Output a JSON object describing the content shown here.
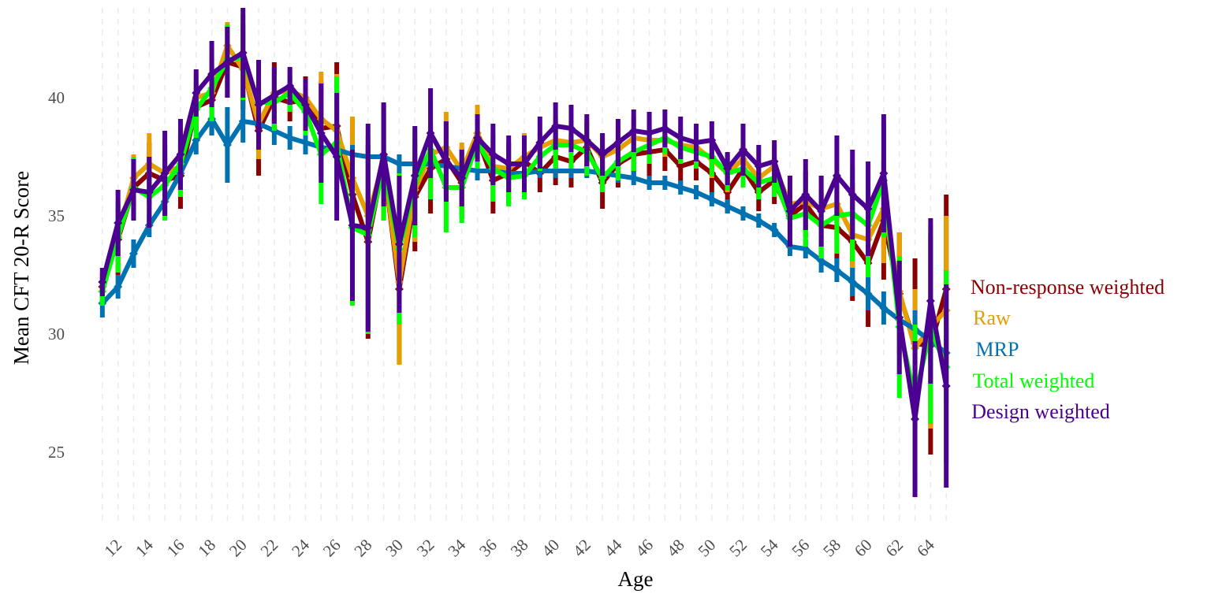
{
  "chart_data": {
    "type": "line",
    "title": "",
    "xlabel": "Age",
    "ylabel": "Mean CFT 20-R Score",
    "xlim": [
      10,
      66
    ],
    "ylim": [
      21.9,
      43.8
    ],
    "y_ticks": [
      25,
      30,
      35,
      40
    ],
    "x_ticks": [
      12,
      14,
      16,
      18,
      20,
      22,
      24,
      26,
      28,
      30,
      32,
      34,
      36,
      38,
      40,
      42,
      44,
      46,
      48,
      50,
      52,
      54,
      56,
      58,
      60,
      62,
      64
    ],
    "grid": "vertical dashed lines at every age",
    "legend": "direct labels at right end of lines",
    "x": [
      11,
      12,
      13,
      14,
      15,
      16,
      17,
      18,
      19,
      20,
      21,
      22,
      23,
      24,
      25,
      26,
      27,
      28,
      29,
      30,
      31,
      32,
      33,
      34,
      35,
      36,
      37,
      38,
      39,
      40,
      41,
      42,
      43,
      44,
      45,
      46,
      47,
      48,
      49,
      50,
      51,
      52,
      53,
      54,
      55,
      56,
      57,
      58,
      59,
      60,
      61,
      62,
      63,
      64,
      65
    ],
    "series": [
      {
        "name": "Non-response weighted",
        "color": "#8b0000",
        "values": [
          32.0,
          34.0,
          36.2,
          36.8,
          36.5,
          36.7,
          39.6,
          39.9,
          41.5,
          41.3,
          38.6,
          40.0,
          39.8,
          39.9,
          38.7,
          38.8,
          35.9,
          33.9,
          37.3,
          31.9,
          35.8,
          37.0,
          37.4,
          36.4,
          38.3,
          36.5,
          36.8,
          37.3,
          36.8,
          37.5,
          37.3,
          37.9,
          36.4,
          37.2,
          37.6,
          37.7,
          37.8,
          37.1,
          37.3,
          36.8,
          36.0,
          37.0,
          36.0,
          36.5,
          35.0,
          35.5,
          34.6,
          34.5,
          33.9,
          33.0,
          34.8,
          31.7,
          29.6,
          29.5,
          31.9
        ],
        "err": [
          0.6,
          1.5,
          1.3,
          1.3,
          1.5,
          1.4,
          1.0,
          1.5,
          1.5,
          1.8,
          1.9,
          1.5,
          0.8,
          1.0,
          2.0,
          2.7,
          3.2,
          4.1,
          2.4,
          3.2,
          2.3,
          1.9,
          1.6,
          1.5,
          1.0,
          1.4,
          1.3,
          1.1,
          0.8,
          1.2,
          1.1,
          1.0,
          1.1,
          1.0,
          1.0,
          1.0,
          0.9,
          0.8,
          0.8,
          0.8,
          0.9,
          0.8,
          0.8,
          1.0,
          1.0,
          1.4,
          1.5,
          1.6,
          2.5,
          2.7,
          2.5,
          2.6,
          3.6,
          4.6,
          4.0
        ]
      },
      {
        "name": "Raw",
        "color": "#e69f00",
        "values": [
          32.2,
          34.2,
          36.6,
          37.2,
          36.8,
          37.1,
          40.0,
          40.2,
          42.2,
          41.2,
          38.9,
          40.2,
          40.3,
          40.0,
          39.1,
          38.6,
          36.6,
          35.0,
          37.3,
          32.2,
          36.1,
          37.6,
          37.9,
          36.9,
          38.5,
          37.1,
          37.0,
          37.5,
          37.9,
          38.2,
          38.1,
          38.2,
          37.5,
          37.8,
          38.3,
          38.2,
          38.2,
          38.0,
          37.9,
          37.4,
          36.8,
          37.4,
          36.6,
          37.1,
          35.5,
          35.6,
          35.3,
          35.5,
          34.2,
          34.0,
          35.3,
          31.8,
          29.4,
          30.3,
          31.0
        ],
        "err": [
          0.4,
          1.3,
          1.0,
          1.3,
          1.4,
          1.3,
          1.0,
          1.4,
          1.0,
          1.6,
          1.5,
          0.8,
          0.9,
          0.8,
          2.0,
          2.4,
          2.6,
          2.5,
          2.5,
          3.5,
          2.2,
          1.6,
          1.5,
          1.2,
          1.2,
          1.2,
          1.1,
          1.0,
          0.6,
          1.0,
          0.9,
          0.9,
          0.9,
          0.9,
          0.9,
          0.8,
          0.7,
          0.7,
          0.7,
          0.8,
          0.8,
          0.7,
          0.7,
          0.9,
          1.2,
          1.3,
          1.4,
          1.5,
          2.1,
          2.3,
          2.3,
          2.5,
          2.5,
          4.3,
          4.0
        ]
      },
      {
        "name": "MRP",
        "color": "#0072b2",
        "values": [
          31.3,
          32.0,
          33.4,
          34.6,
          35.6,
          36.8,
          38.2,
          39.1,
          38.0,
          39.0,
          38.9,
          38.6,
          38.3,
          38.1,
          37.9,
          37.8,
          37.6,
          37.5,
          37.5,
          37.2,
          37.2,
          37.2,
          37.1,
          37.0,
          36.9,
          36.9,
          36.8,
          36.8,
          36.9,
          36.9,
          36.9,
          36.9,
          36.8,
          36.7,
          36.6,
          36.4,
          36.4,
          36.2,
          36.0,
          35.7,
          35.4,
          35.1,
          34.8,
          34.4,
          33.7,
          33.6,
          33.1,
          32.7,
          32.2,
          31.7,
          31.1,
          30.6,
          30.2,
          29.7,
          29.2
        ],
        "err": [
          0.6,
          0.5,
          0.6,
          0.5,
          0.5,
          0.5,
          0.6,
          0.7,
          1.6,
          0.9,
          0.6,
          0.6,
          0.5,
          0.5,
          0.5,
          0.5,
          0.4,
          0.4,
          0.4,
          0.4,
          0.5,
          0.4,
          0.4,
          0.4,
          0.4,
          0.3,
          0.3,
          0.3,
          0.3,
          0.3,
          0.3,
          0.3,
          0.3,
          0.3,
          0.3,
          0.3,
          0.3,
          0.3,
          0.3,
          0.3,
          0.3,
          0.3,
          0.3,
          0.3,
          0.4,
          0.4,
          0.5,
          0.5,
          0.6,
          0.7,
          0.7,
          0.8,
          0.8,
          0.9,
          1.0
        ]
      },
      {
        "name": "Total weighted",
        "color": "#00ff00",
        "values": [
          31.8,
          34.1,
          36.2,
          35.8,
          36.3,
          37.2,
          39.5,
          40.4,
          41.6,
          41.7,
          39.8,
          39.8,
          40.2,
          39.4,
          37.6,
          38.1,
          34.5,
          34.2,
          37.1,
          33.6,
          36.4,
          37.8,
          36.2,
          36.2,
          38.1,
          37.0,
          36.6,
          36.7,
          37.5,
          38.0,
          38.0,
          37.7,
          36.6,
          37.3,
          37.7,
          38.0,
          38.3,
          37.9,
          37.7,
          37.5,
          36.8,
          37.0,
          36.4,
          36.6,
          34.9,
          35.1,
          34.6,
          35.0,
          35.1,
          34.6,
          36.5,
          30.3,
          27.3,
          30.2,
          28.6
        ],
        "err": [
          0.6,
          1.5,
          1.3,
          1.3,
          1.5,
          1.4,
          1.2,
          1.4,
          1.5,
          1.8,
          1.8,
          1.2,
          0.8,
          1.0,
          2.1,
          2.8,
          3.3,
          4.2,
          2.3,
          3.2,
          2.3,
          2.1,
          1.9,
          1.5,
          1.1,
          1.4,
          1.2,
          1.0,
          0.6,
          1.0,
          1.0,
          1.0,
          0.6,
          0.8,
          0.8,
          0.8,
          0.7,
          0.7,
          0.7,
          0.8,
          0.7,
          0.8,
          0.7,
          0.8,
          0.9,
          1.4,
          1.4,
          1.6,
          2.0,
          2.2,
          2.4,
          3.0,
          3.1,
          4.0,
          4.1
        ]
      },
      {
        "name": "Design weighted",
        "color": "#4b0092",
        "values": [
          32.2,
          34.7,
          36.1,
          36.0,
          36.8,
          37.6,
          40.2,
          41.0,
          41.5,
          41.9,
          39.7,
          40.1,
          40.5,
          39.7,
          38.5,
          37.5,
          34.6,
          34.5,
          37.6,
          33.8,
          36.7,
          38.5,
          37.3,
          36.6,
          38.3,
          37.6,
          37.2,
          37.2,
          38.1,
          38.8,
          38.7,
          38.2,
          37.6,
          38.1,
          38.6,
          38.5,
          38.7,
          38.3,
          38.1,
          38.2,
          37.0,
          37.8,
          37.1,
          37.3,
          35.2,
          35.9,
          35.2,
          36.7,
          35.9,
          35.3,
          36.8,
          30.7,
          26.4,
          31.4,
          27.8
        ],
        "err": [
          0.6,
          1.4,
          1.3,
          1.5,
          1.8,
          1.5,
          1.0,
          1.4,
          1.5,
          1.9,
          1.9,
          1.2,
          0.8,
          1.1,
          2.1,
          2.7,
          3.2,
          4.4,
          2.2,
          2.9,
          2.1,
          1.9,
          1.7,
          1.2,
          1.0,
          1.3,
          1.2,
          1.2,
          1.1,
          1.0,
          1.0,
          1.1,
          0.9,
          1.0,
          0.9,
          0.9,
          0.8,
          0.9,
          0.8,
          0.8,
          0.7,
          1.1,
          0.9,
          0.9,
          1.5,
          1.5,
          1.5,
          1.7,
          1.9,
          2.0,
          2.5,
          2.4,
          3.3,
          3.5,
          4.3
        ]
      }
    ],
    "series_labels": [
      {
        "text": "Non-response weighted",
        "color": "#8b0000"
      },
      {
        "text": "Raw",
        "color": "#e69f00"
      },
      {
        "text": "MRP",
        "color": "#0072b2"
      },
      {
        "text": "Total weighted",
        "color": "#00ff00"
      },
      {
        "text": "Design weighted",
        "color": "#4b0092"
      }
    ]
  }
}
